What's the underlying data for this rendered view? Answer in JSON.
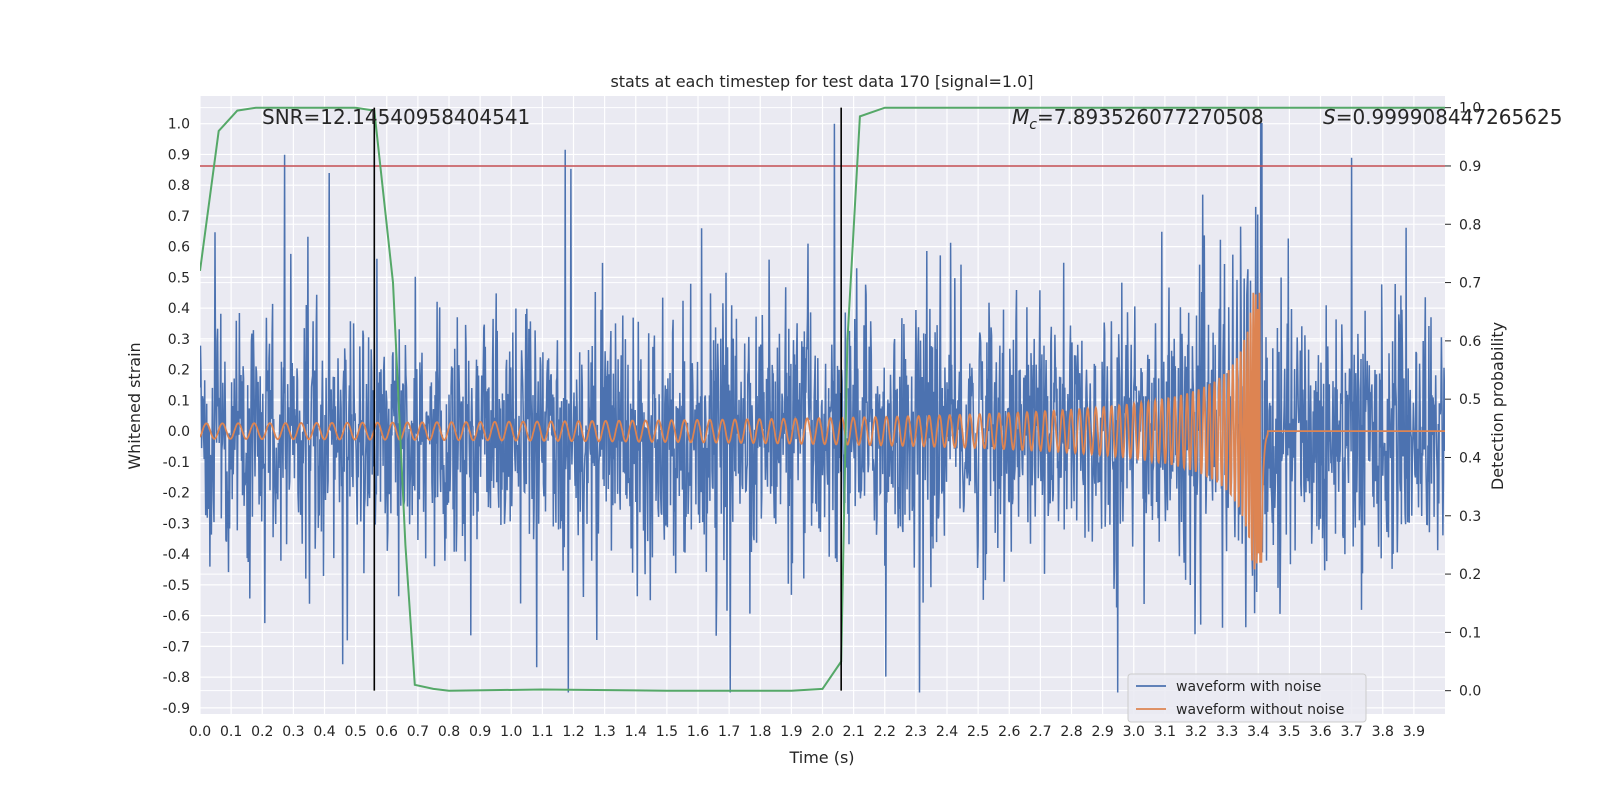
{
  "chart_data": {
    "type": "line",
    "title": "stats at each timestep for test data 170 [signal=1.0]",
    "xlabel": "Time (s)",
    "ylabel": "Whitened strain",
    "y2label": "Detection probability",
    "xlim": [
      0.0,
      4.0
    ],
    "ylim": [
      -0.92,
      1.09
    ],
    "y2lim": [
      -0.04,
      1.02
    ],
    "x_ticks": [
      "0.0",
      "0.1",
      "0.2",
      "0.3",
      "0.4",
      "0.5",
      "0.6",
      "0.7",
      "0.8",
      "0.9",
      "1.0",
      "1.1",
      "1.2",
      "1.3",
      "1.4",
      "1.5",
      "1.6",
      "1.7",
      "1.8",
      "1.9",
      "2.0",
      "2.1",
      "2.2",
      "2.3",
      "2.4",
      "2.5",
      "2.6",
      "2.7",
      "2.8",
      "2.9",
      "3.0",
      "3.1",
      "3.2",
      "3.3",
      "3.4",
      "3.5",
      "3.6",
      "3.7",
      "3.8",
      "3.9"
    ],
    "y_ticks": [
      "1.0",
      "0.9",
      "0.8",
      "0.7",
      "0.6",
      "0.5",
      "0.4",
      "0.3",
      "0.2",
      "0.1",
      "0.0",
      "-0.1",
      "-0.2",
      "-0.3",
      "-0.4",
      "-0.5",
      "-0.6",
      "-0.7",
      "-0.8",
      "-0.9"
    ],
    "y2_ticks": [
      "1.0",
      "0.9",
      "0.8",
      "0.7",
      "0.6",
      "0.5",
      "0.4",
      "0.3",
      "0.2",
      "0.1",
      "0.0"
    ],
    "grid": true,
    "legend_position": "bottom-right",
    "annotations": {
      "snr": "SNR=12.14540958404541",
      "mc_symbol": "M",
      "mc_sub": "c",
      "mc_value": "=7.893526077270508",
      "s_symbol": "S",
      "s_value": "=0.999908447265625"
    },
    "vertical_lines_x": [
      0.56,
      2.06
    ],
    "threshold_y2": 0.9,
    "series": [
      {
        "name": "waveform with noise",
        "color": "#4c72b0",
        "axis": "left",
        "description": "noisy whitened strain, approx amplitude +-0.5 with peaks near 0.7-1.0"
      },
      {
        "name": "waveform without noise",
        "color": "#dd8452",
        "axis": "left",
        "chirp": {
          "start": 0.0,
          "merger": 3.41,
          "amp_start": 0.025,
          "amp_peak": 0.45
        }
      },
      {
        "name": "detection probability",
        "color": "#55a868",
        "axis": "right",
        "x": [
          0.0,
          0.06,
          0.12,
          0.18,
          0.5,
          0.56,
          0.62,
          0.66,
          0.69,
          0.75,
          0.8,
          1.1,
          1.5,
          1.9,
          2.0,
          2.06,
          2.08,
          2.12,
          2.2,
          3.0,
          4.0
        ],
        "y": [
          0.72,
          0.96,
          0.995,
          1.0,
          1.0,
          0.995,
          0.7,
          0.25,
          0.01,
          0.003,
          0.0,
          0.002,
          0.0,
          0.0,
          0.003,
          0.05,
          0.6,
          0.985,
          1.0,
          1.0,
          1.0
        ]
      }
    ],
    "colors": {
      "plot_bg": "#eaeaf2",
      "grid": "#ffffff",
      "threshold": "#c44e52",
      "vline": "#000000"
    }
  }
}
